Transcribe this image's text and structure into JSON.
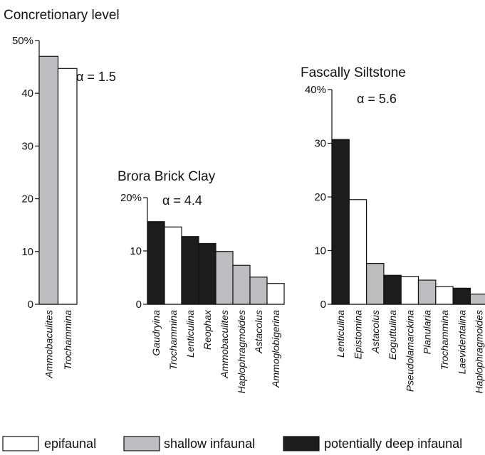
{
  "colors": {
    "epifaunal": "#ffffff",
    "shallow_infaunal": "#bdbdc0",
    "potentially_deep_infaunal": "#1c1c1c"
  },
  "legend": [
    {
      "key": "epifaunal",
      "label": "epifaunal"
    },
    {
      "key": "shallow_infaunal",
      "label": "shallow infaunal"
    },
    {
      "key": "potentially_deep_infaunal",
      "label": "potentially deep infaunal"
    }
  ],
  "chart_data": [
    {
      "type": "bar",
      "title": "Concretionary level",
      "annotation": "α = 1.5",
      "ylim": [
        0,
        50
      ],
      "yticks": [
        0,
        10,
        20,
        30,
        40,
        50
      ],
      "yticklabels": [
        "0",
        "10",
        "20",
        "30",
        "40",
        "50%"
      ],
      "categories": [
        "Ammobaculites",
        "Trochammina"
      ],
      "values": [
        47,
        44.7
      ],
      "groups": [
        "shallow_infaunal",
        "epifaunal"
      ]
    },
    {
      "type": "bar",
      "title": "Brora Brick Clay",
      "annotation": "α = 4.4",
      "ylim": [
        0,
        20
      ],
      "yticks": [
        0,
        10,
        20
      ],
      "yticklabels": [
        "0",
        "10",
        "20%"
      ],
      "categories": [
        "Gaudryina",
        "Trochammina",
        "Lenticulina",
        "Reophax",
        "Ammobaculites",
        "Haplophragmoides",
        "Astacolus",
        "Ammoglobigerina"
      ],
      "values": [
        15.5,
        14.5,
        12.7,
        11.4,
        9.9,
        7.3,
        5.1,
        3.9
      ],
      "groups": [
        "potentially_deep_infaunal",
        "epifaunal",
        "potentially_deep_infaunal",
        "potentially_deep_infaunal",
        "shallow_infaunal",
        "shallow_infaunal",
        "shallow_infaunal",
        "epifaunal"
      ]
    },
    {
      "type": "bar",
      "title": "Fascally Siltstone",
      "annotation": "α = 5.6",
      "ylim": [
        0,
        40
      ],
      "yticks": [
        0,
        10,
        20,
        30,
        40
      ],
      "yticklabels": [
        "0",
        "10",
        "20",
        "30",
        "40%"
      ],
      "categories": [
        "Lenticulina",
        "Epistomina",
        "Astacolus",
        "Eoguttulina",
        "Pseudolamarckina",
        "Planularia",
        "Trochammina",
        "Laevidentalina",
        "Haplophragmoides"
      ],
      "values": [
        30.7,
        19.5,
        7.6,
        5.4,
        5.2,
        4.5,
        3.3,
        3.0,
        1.9
      ],
      "groups": [
        "potentially_deep_infaunal",
        "epifaunal",
        "shallow_infaunal",
        "potentially_deep_infaunal",
        "epifaunal",
        "shallow_infaunal",
        "epifaunal",
        "potentially_deep_infaunal",
        "shallow_infaunal"
      ]
    }
  ]
}
